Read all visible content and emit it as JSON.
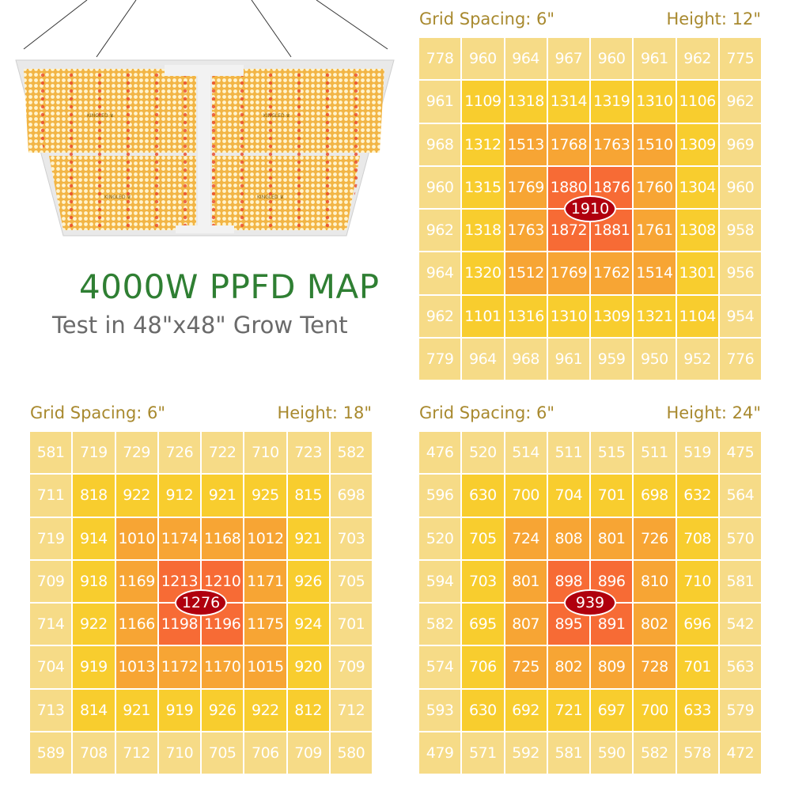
{
  "header": {
    "title": "4000W PPFD MAP",
    "subtitle": "Test in 48\"x48\" Grow Tent",
    "brand_logo_text": "KINGLED"
  },
  "colors": {
    "title": "#2f7f33",
    "subtitle": "#6a6a6a",
    "map_heading": "#a8892e",
    "levels": [
      "#f6db87",
      "#f8cd2e",
      "#f7a534",
      "#f76b35"
    ],
    "peak": "#b0000e",
    "cell_text": "#ffffff"
  },
  "chart_data": [
    {
      "type": "heatmap",
      "spacing_label": "Grid Spacing: 6\"",
      "height_label": "Height: 12\"",
      "peak": 1910,
      "values": [
        [
          778,
          960,
          964,
          967,
          960,
          961,
          962,
          775
        ],
        [
          961,
          1109,
          1318,
          1314,
          1319,
          1310,
          1106,
          962
        ],
        [
          968,
          1312,
          1513,
          1768,
          1763,
          1510,
          1309,
          969
        ],
        [
          960,
          1315,
          1769,
          1880,
          1876,
          1760,
          1304,
          960
        ],
        [
          962,
          1318,
          1763,
          1872,
          1881,
          1761,
          1308,
          958
        ],
        [
          964,
          1320,
          1512,
          1769,
          1762,
          1514,
          1301,
          956
        ],
        [
          962,
          1101,
          1316,
          1310,
          1309,
          1321,
          1104,
          954
        ],
        [
          779,
          964,
          968,
          961,
          959,
          950,
          952,
          776
        ]
      ]
    },
    {
      "type": "heatmap",
      "spacing_label": "Grid Spacing: 6\"",
      "height_label": "Height: 18\"",
      "peak": 1276,
      "values": [
        [
          581,
          719,
          729,
          726,
          722,
          710,
          723,
          582
        ],
        [
          711,
          818,
          922,
          912,
          921,
          925,
          815,
          698
        ],
        [
          719,
          914,
          1010,
          1174,
          1168,
          1012,
          921,
          703
        ],
        [
          709,
          918,
          1169,
          1213,
          1210,
          1171,
          926,
          705
        ],
        [
          714,
          922,
          1166,
          1198,
          1196,
          1175,
          924,
          701
        ],
        [
          704,
          919,
          1013,
          1172,
          1170,
          1015,
          920,
          709
        ],
        [
          713,
          814,
          921,
          919,
          926,
          922,
          812,
          712
        ],
        [
          589,
          708,
          712,
          710,
          705,
          706,
          709,
          580
        ]
      ]
    },
    {
      "type": "heatmap",
      "spacing_label": "Grid Spacing: 6\"",
      "height_label": "Height: 24\"",
      "peak": 939,
      "values": [
        [
          476,
          520,
          514,
          511,
          515,
          511,
          519,
          475
        ],
        [
          596,
          630,
          700,
          704,
          701,
          698,
          632,
          564
        ],
        [
          520,
          705,
          724,
          808,
          801,
          726,
          708,
          570
        ],
        [
          594,
          703,
          801,
          898,
          896,
          810,
          710,
          581
        ],
        [
          582,
          695,
          807,
          895,
          891,
          802,
          696,
          542
        ],
        [
          574,
          706,
          725,
          802,
          809,
          728,
          701,
          563
        ],
        [
          593,
          630,
          692,
          721,
          697,
          700,
          633,
          579
        ],
        [
          479,
          571,
          592,
          581,
          590,
          582,
          578,
          472
        ]
      ]
    }
  ]
}
